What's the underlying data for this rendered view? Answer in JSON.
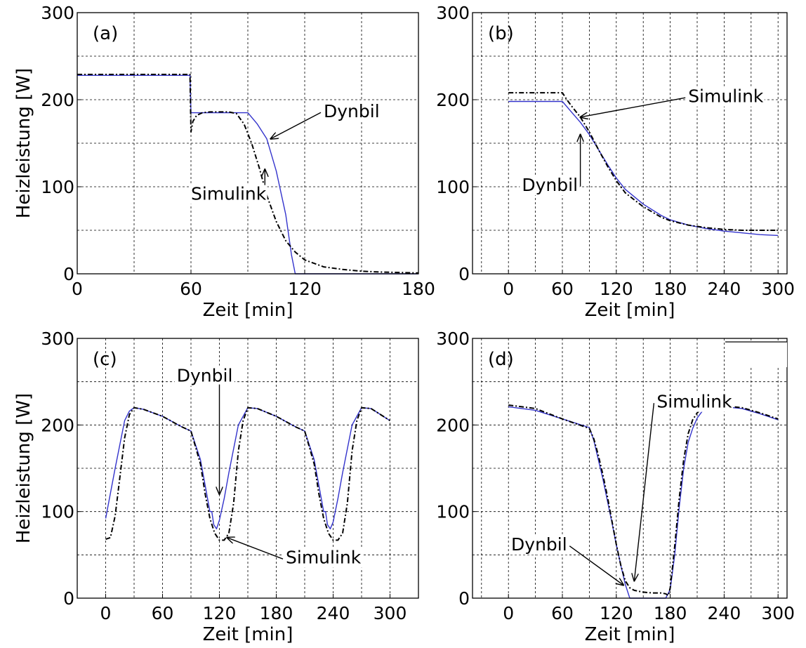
{
  "colors": {
    "dynbil": "#3333cc",
    "simulink": "#000000"
  },
  "chart_data": [
    {
      "panel": "(a)",
      "type": "line",
      "xlabel": "Zeit [min]",
      "ylabel": "Heizleistung [W]",
      "xlim": [
        0,
        180
      ],
      "ylim": [
        0,
        300
      ],
      "xticks": [
        0,
        60,
        120,
        180
      ],
      "yticks": [
        0,
        100,
        200,
        300
      ],
      "grid": true,
      "series": [
        {
          "name": "Dynbil",
          "style": "solid",
          "color": "#3333cc",
          "x": [
            0,
            59.5,
            60,
            61,
            62,
            65,
            70,
            80,
            90,
            95,
            100,
            105,
            110,
            113,
            115,
            180
          ],
          "y": [
            228,
            228,
            185,
            185,
            185,
            185,
            185,
            185,
            185,
            172,
            155,
            118,
            68,
            22,
            0,
            0
          ]
        },
        {
          "name": "Simulink",
          "style": "dashdot",
          "color": "#000000",
          "x": [
            0,
            59.5,
            60,
            61,
            63,
            66,
            70,
            80,
            84,
            88,
            92,
            96,
            100,
            105,
            110,
            115,
            120,
            130,
            140,
            150,
            160,
            180
          ],
          "y": [
            229,
            229,
            163,
            175,
            182,
            185,
            186,
            186,
            184,
            172,
            150,
            122,
            90,
            60,
            38,
            25,
            16,
            8,
            5,
            3,
            2,
            1
          ]
        }
      ],
      "annotations": [
        {
          "text": "Dynbil",
          "series": "Dynbil",
          "target": [
            102,
            155
          ],
          "label": [
            130,
            180
          ]
        },
        {
          "text": "Simulink",
          "series": "Simulink",
          "target": [
            99,
            120
          ],
          "label": [
            60,
            85
          ]
        }
      ]
    },
    {
      "panel": "(b)",
      "type": "line",
      "xlabel": "Zeit [min]",
      "ylabel": "",
      "xlim": [
        -40,
        310
      ],
      "ylim": [
        0,
        300
      ],
      "xticks": [
        0,
        60,
        120,
        180,
        240,
        300
      ],
      "yticks": [
        0,
        100,
        200,
        300
      ],
      "grid": true,
      "series": [
        {
          "name": "Dynbil",
          "style": "solid",
          "color": "#3333cc",
          "x": [
            0,
            60,
            65,
            70,
            80,
            90,
            100,
            110,
            120,
            130,
            150,
            170,
            180,
            200,
            220,
            240,
            260,
            280,
            300
          ],
          "y": [
            198,
            198,
            192,
            186,
            174,
            160,
            143,
            126,
            110,
            97,
            80,
            67,
            62,
            56,
            52,
            49,
            47,
            45,
            44
          ]
        },
        {
          "name": "Simulink",
          "style": "dashdot",
          "color": "#000000",
          "x": [
            0,
            60,
            65,
            70,
            80,
            90,
            100,
            110,
            120,
            130,
            150,
            170,
            180,
            200,
            220,
            240,
            260,
            280,
            300
          ],
          "y": [
            208,
            208,
            200,
            193,
            180,
            163,
            143,
            124,
            107,
            93,
            77,
            65,
            61,
            56,
            53,
            51,
            50,
            50,
            50
          ]
        }
      ],
      "annotations": [
        {
          "text": "Simulink",
          "series": "Simulink",
          "target": [
            80,
            180
          ],
          "label": [
            200,
            197
          ]
        },
        {
          "text": "Dynbil",
          "series": "Dynbil",
          "target": [
            80,
            160
          ],
          "label": [
            15,
            95
          ]
        }
      ]
    },
    {
      "panel": "(c)",
      "type": "line",
      "xlabel": "Zeit [min]",
      "ylabel": "Heizleistung [W]",
      "xlim": [
        -30,
        330
      ],
      "ylim": [
        0,
        300
      ],
      "xticks": [
        0,
        60,
        120,
        180,
        240,
        300
      ],
      "yticks": [
        0,
        100,
        200,
        300
      ],
      "grid": true,
      "series": [
        {
          "name": "Dynbil",
          "style": "solid",
          "color": "#3333cc",
          "x": [
            0,
            10,
            20,
            25,
            30,
            40,
            60,
            80,
            90,
            100,
            105,
            110,
            112,
            114,
            117,
            120,
            125,
            130,
            140,
            150,
            160,
            180,
            200,
            210,
            220,
            230,
            232,
            234,
            237,
            240,
            245,
            250,
            260,
            270,
            280,
            290,
            300
          ],
          "y": [
            92,
            150,
            205,
            216,
            220,
            218,
            210,
            198,
            193,
            160,
            130,
            100,
            100,
            85,
            80,
            90,
            115,
            145,
            200,
            220,
            219,
            210,
            198,
            193,
            160,
            100,
            100,
            85,
            80,
            88,
            115,
            145,
            200,
            220,
            219,
            212,
            205
          ]
        },
        {
          "name": "Simulink",
          "style": "dashdot",
          "color": "#000000",
          "x": [
            0,
            5,
            10,
            15,
            20,
            25,
            30,
            40,
            60,
            80,
            90,
            100,
            105,
            110,
            115,
            120,
            125,
            130,
            135,
            140,
            145,
            150,
            160,
            180,
            200,
            210,
            220,
            225,
            230,
            235,
            240,
            245,
            250,
            255,
            260,
            265,
            270,
            280,
            290,
            300
          ],
          "y": [
            68,
            70,
            95,
            140,
            185,
            212,
            220,
            218,
            210,
            198,
            193,
            155,
            120,
            92,
            75,
            67,
            67,
            75,
            110,
            170,
            205,
            220,
            219,
            210,
            198,
            193,
            155,
            120,
            92,
            75,
            67,
            67,
            75,
            110,
            170,
            205,
            220,
            219,
            212,
            205
          ]
        }
      ],
      "annotations": [
        {
          "text": "Dynbil",
          "series": "Dynbil",
          "target": [
            120,
            120
          ],
          "label": [
            75,
            250
          ]
        },
        {
          "text": "Simulink",
          "series": "Simulink",
          "target": [
            128,
            70
          ],
          "label": [
            190,
            40
          ]
        }
      ]
    },
    {
      "panel": "(d)",
      "type": "line",
      "xlabel": "Zeit [min]",
      "ylabel": "",
      "xlim": [
        -40,
        310
      ],
      "ylim": [
        0,
        300
      ],
      "xticks": [
        0,
        60,
        120,
        180,
        240,
        300
      ],
      "yticks": [
        0,
        100,
        200,
        300
      ],
      "grid": true,
      "series": [
        {
          "name": "Dynbil",
          "style": "solid",
          "color": "#3333cc",
          "x": [
            0,
            30,
            60,
            90,
            95,
            100,
            105,
            110,
            115,
            120,
            125,
            130,
            135,
            175,
            180,
            185,
            190,
            195,
            200,
            205,
            210,
            215,
            220,
            240,
            260,
            280,
            300
          ],
          "y": [
            221,
            217,
            207,
            197,
            182,
            160,
            138,
            113,
            88,
            62,
            38,
            16,
            0,
            0,
            10,
            50,
            105,
            150,
            180,
            196,
            208,
            215,
            220,
            221,
            219,
            213,
            206
          ]
        },
        {
          "name": "Simulink",
          "style": "dashdot",
          "color": "#000000",
          "x": [
            0,
            30,
            60,
            90,
            95,
            100,
            105,
            110,
            115,
            120,
            125,
            130,
            135,
            140,
            150,
            160,
            170,
            175,
            178,
            180,
            185,
            190,
            195,
            200,
            205,
            210,
            215,
            220,
            240,
            260,
            280,
            300
          ],
          "y": [
            223,
            219,
            207,
            196,
            184,
            165,
            143,
            118,
            90,
            62,
            38,
            20,
            12,
            9,
            7,
            6,
            6,
            5,
            3,
            12,
            60,
            115,
            160,
            190,
            206,
            214,
            219,
            222,
            222,
            220,
            214,
            207
          ]
        }
      ],
      "annotations": [
        {
          "text": "Simulink",
          "series": "Simulink",
          "target": [
            140,
            20
          ],
          "label": [
            165,
            220
          ]
        },
        {
          "text": "Dynbil",
          "series": "Dynbil",
          "target": [
            128,
            15
          ],
          "label": [
            3,
            55
          ]
        }
      ]
    }
  ]
}
